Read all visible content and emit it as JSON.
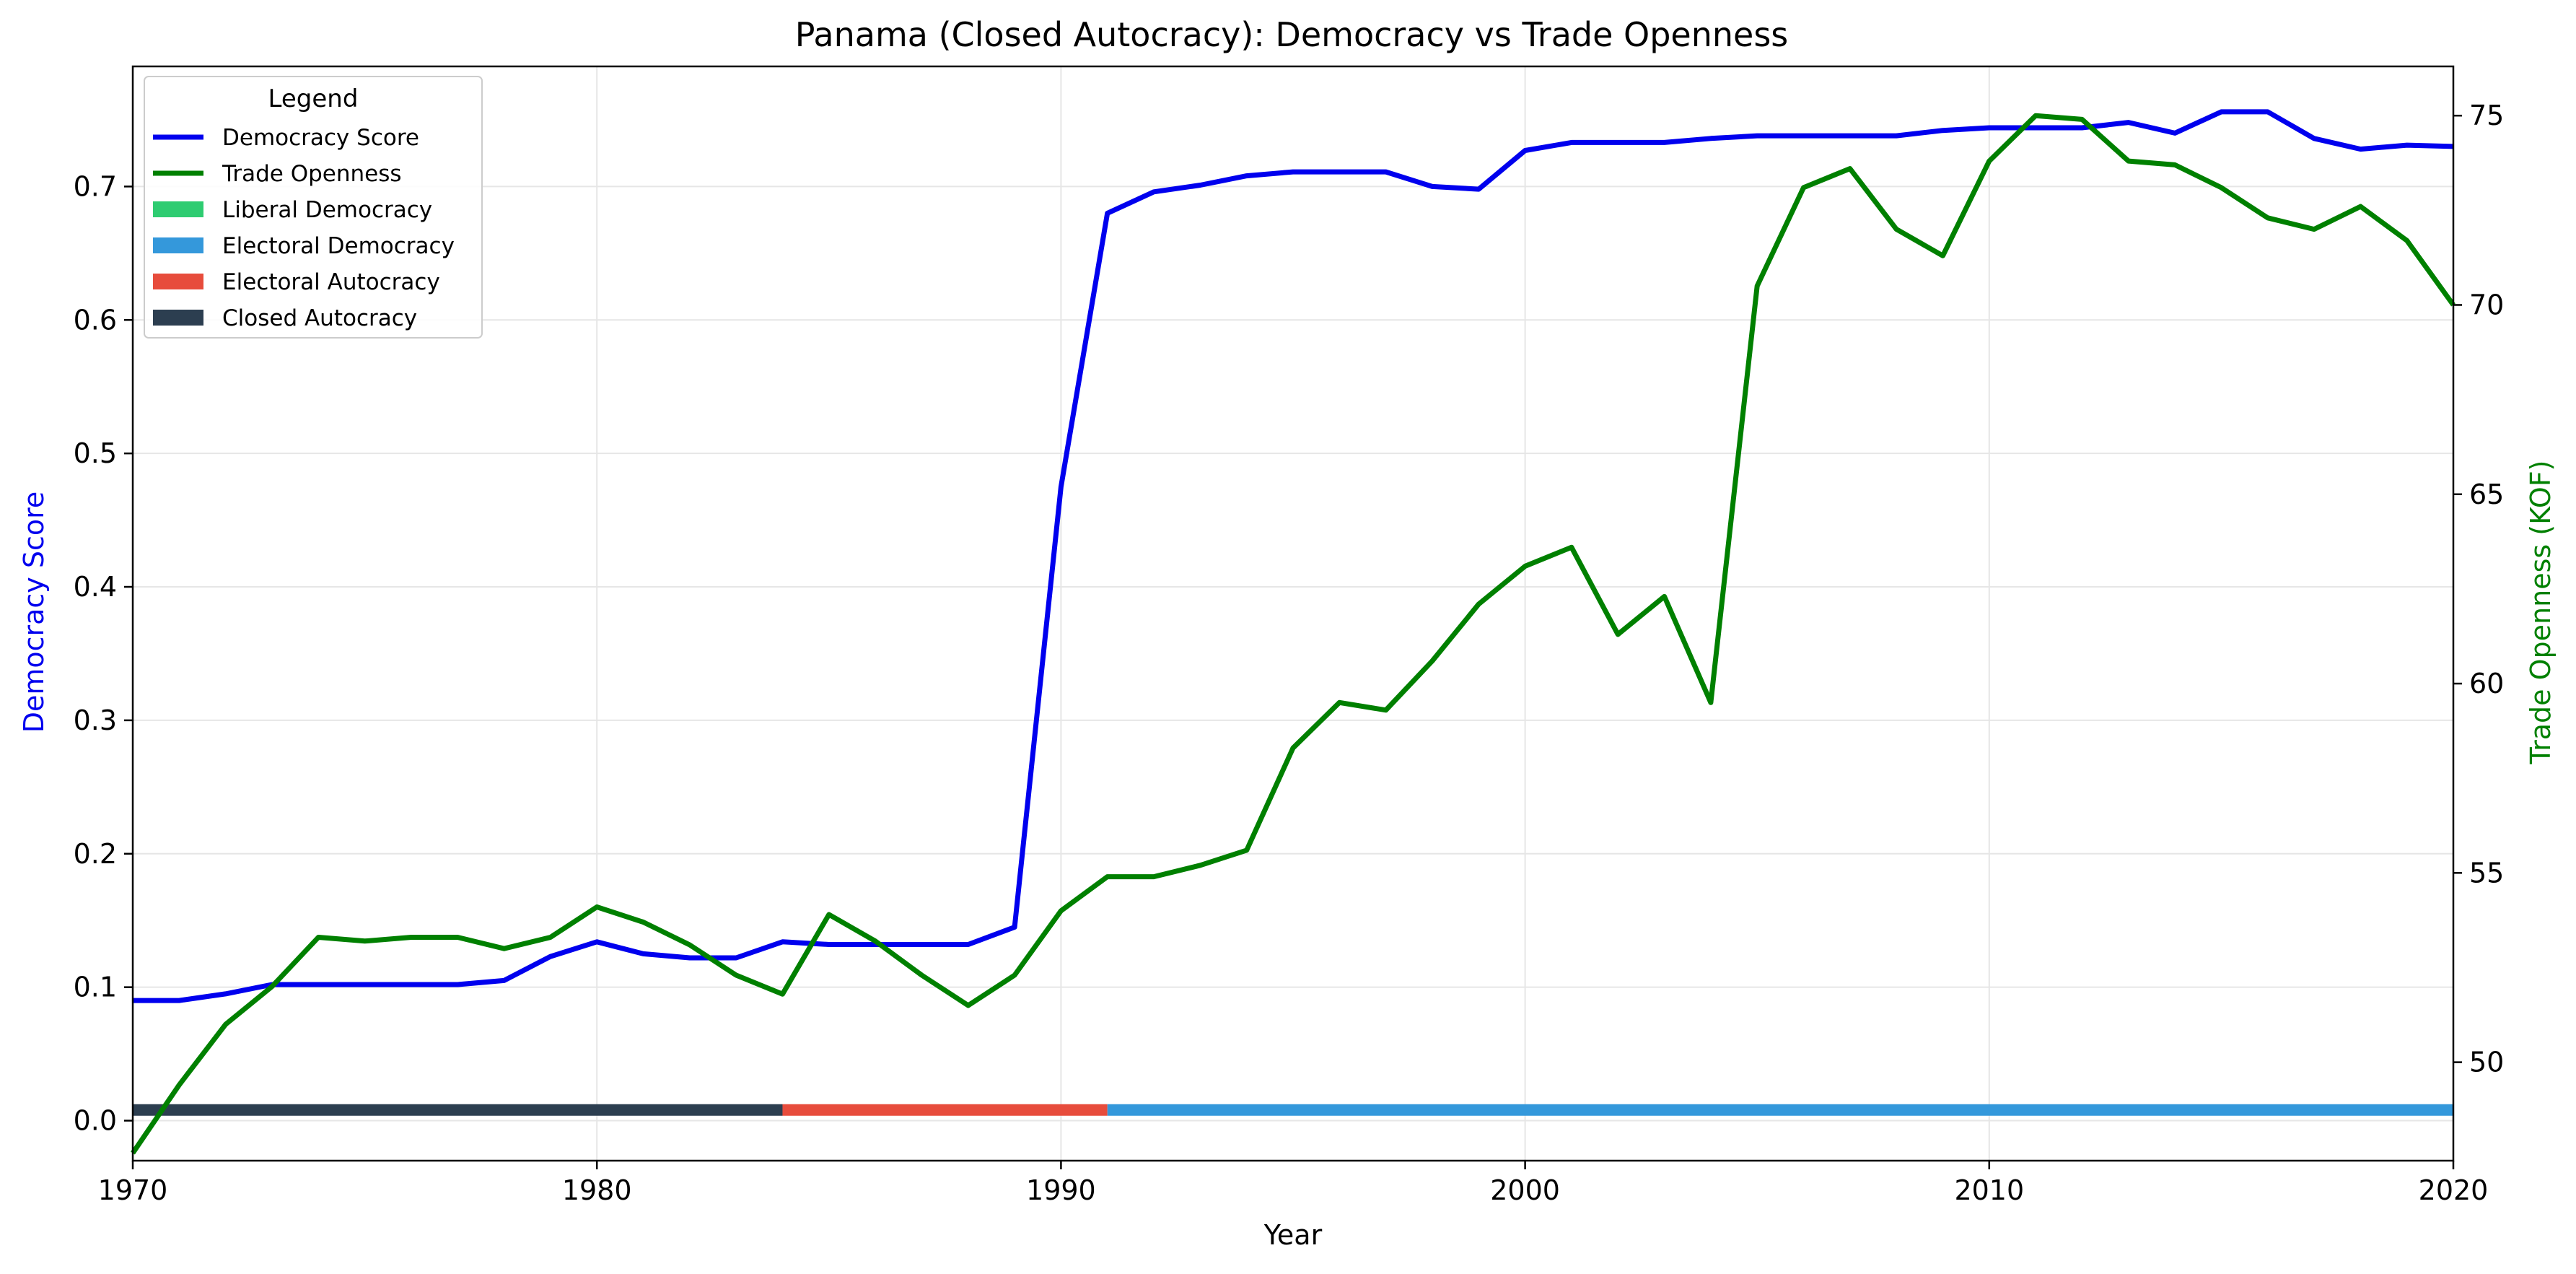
{
  "chart_data": {
    "type": "line",
    "title": "Panama (Closed Autocracy): Democracy vs Trade Openness",
    "xlabel": "Year",
    "ylabel_left": "Democracy Score",
    "ylabel_right": "Trade Openness (KOF)",
    "xlim": [
      1970,
      2020
    ],
    "ylim_left": [
      -0.03,
      0.79
    ],
    "ylim_right": [
      47.4,
      76.3
    ],
    "x_ticks": [
      1970,
      1980,
      1990,
      2000,
      2010,
      2020
    ],
    "y_left_ticks": [
      0.0,
      0.1,
      0.2,
      0.3,
      0.4,
      0.5,
      0.6,
      0.7
    ],
    "y_right_ticks": [
      50,
      55,
      60,
      65,
      70,
      75
    ],
    "grid": true,
    "legend": {
      "title": "Legend",
      "placement": "upper-left",
      "entries": [
        {
          "label": "Democracy Score",
          "kind": "line",
          "color": "#0000ee"
        },
        {
          "label": "Trade Openness",
          "kind": "line",
          "color": "#008000"
        },
        {
          "label": "Liberal Democracy",
          "kind": "patch",
          "color": "#2ecc71"
        },
        {
          "label": "Electoral Democracy",
          "kind": "patch",
          "color": "#3498db"
        },
        {
          "label": "Electoral Autocracy",
          "kind": "patch",
          "color": "#e74c3c"
        },
        {
          "label": "Closed Autocracy",
          "kind": "patch",
          "color": "#2c3e50"
        }
      ]
    },
    "x": [
      1970,
      1971,
      1972,
      1973,
      1974,
      1975,
      1976,
      1977,
      1978,
      1979,
      1980,
      1981,
      1982,
      1983,
      1984,
      1985,
      1986,
      1987,
      1988,
      1989,
      1990,
      1991,
      1992,
      1993,
      1994,
      1995,
      1996,
      1997,
      1998,
      1999,
      2000,
      2001,
      2002,
      2003,
      2004,
      2005,
      2006,
      2007,
      2008,
      2009,
      2010,
      2011,
      2012,
      2013,
      2014,
      2015,
      2016,
      2017,
      2018,
      2019,
      2020
    ],
    "series": [
      {
        "name": "Democracy Score",
        "axis": "left",
        "color": "#0000ee",
        "values": [
          0.09,
          0.09,
          0.095,
          0.102,
          0.102,
          0.102,
          0.102,
          0.102,
          0.105,
          0.123,
          0.134,
          0.125,
          0.122,
          0.122,
          0.134,
          0.132,
          0.132,
          0.132,
          0.132,
          0.145,
          0.475,
          0.68,
          0.696,
          0.701,
          0.708,
          0.711,
          0.711,
          0.711,
          0.7,
          0.698,
          0.727,
          0.733,
          0.733,
          0.733,
          0.736,
          0.738,
          0.738,
          0.738,
          0.738,
          0.742,
          0.744,
          0.744,
          0.744,
          0.748,
          0.74,
          0.756,
          0.756,
          0.736,
          0.728,
          0.731,
          0.73
        ]
      },
      {
        "name": "Trade Openness",
        "axis": "right",
        "color": "#008000",
        "values": [
          47.6,
          49.4,
          51.0,
          52.0,
          53.3,
          53.2,
          53.3,
          53.3,
          53.0,
          53.3,
          54.1,
          53.7,
          53.1,
          52.3,
          51.8,
          53.9,
          53.2,
          52.3,
          51.5,
          52.3,
          54.0,
          54.9,
          54.9,
          55.2,
          55.6,
          58.3,
          59.5,
          59.3,
          60.6,
          62.1,
          63.1,
          63.6,
          61.3,
          62.3,
          59.5,
          70.5,
          73.1,
          73.6,
          72.0,
          71.3,
          73.8,
          75.0,
          74.9,
          73.8,
          73.7,
          73.1,
          72.3,
          72.0,
          72.6,
          71.7,
          70.0
        ]
      }
    ],
    "regime_bands": [
      {
        "label": "Closed Autocracy",
        "start": 1970,
        "end": 1984,
        "color": "#2c3e50"
      },
      {
        "label": "Electoral Autocracy",
        "start": 1984,
        "end": 1991,
        "color": "#e74c3c"
      },
      {
        "label": "Electoral Democracy",
        "start": 1991,
        "end": 2020,
        "color": "#3498db"
      }
    ],
    "colors": {
      "left_axis_label": "#0000ee",
      "right_axis_label": "#008000",
      "grid": "#e6e6e6"
    }
  }
}
